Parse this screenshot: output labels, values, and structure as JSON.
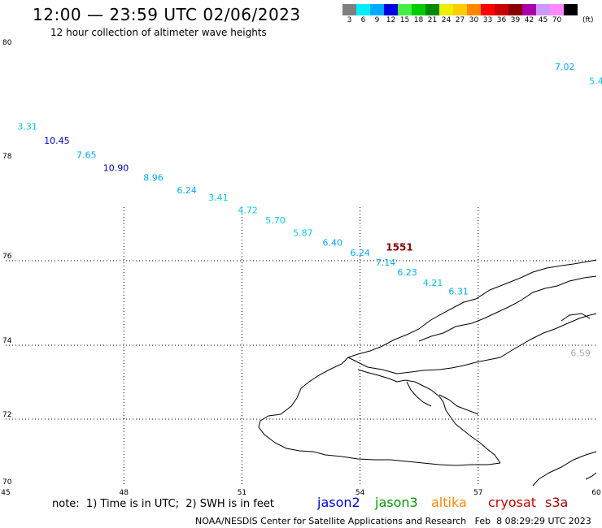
{
  "header": {
    "title": "12:00 — 23:59 UTC 02/06/2023",
    "subtitle": "12 hour collection of altimeter wave heights"
  },
  "color_scale": {
    "unit": "(ft)",
    "bins": [
      {
        "label": "3",
        "color": "#7f7f7f"
      },
      {
        "label": "6",
        "color": "#00eeff"
      },
      {
        "label": "9",
        "color": "#00aaff"
      },
      {
        "label": "12",
        "color": "#0000e0"
      },
      {
        "label": "15",
        "color": "#44ee44"
      },
      {
        "label": "18",
        "color": "#00cc00"
      },
      {
        "label": "21",
        "color": "#008800"
      },
      {
        "label": "24",
        "color": "#eeee00"
      },
      {
        "label": "27",
        "color": "#ffcc00"
      },
      {
        "label": "30",
        "color": "#ff8800"
      },
      {
        "label": "33",
        "color": "#ff0000"
      },
      {
        "label": "36",
        "color": "#cc0000"
      },
      {
        "label": "39",
        "color": "#880000"
      },
      {
        "label": "42",
        "color": "#aa00aa"
      },
      {
        "label": "45",
        "color": "#cc99ff"
      },
      {
        "label": "70",
        "color": "#ff88ff"
      },
      {
        "label": "",
        "color": "#000000"
      }
    ]
  },
  "map": {
    "lon_range": [
      45,
      60
    ],
    "lat_range": [
      70,
      80
    ],
    "lon_ticks": [
      "45",
      "48",
      "51",
      "54",
      "57",
      "60"
    ],
    "lat_ticks": [
      "80",
      "78",
      "76",
      "74",
      "72",
      "70"
    ],
    "observations": [
      {
        "value": "7.02",
        "lon": 59.2,
        "lat": 79.6,
        "color": "#00aaff"
      },
      {
        "value": "5.4",
        "lon": 60.0,
        "lat": 79.35,
        "color": "#00ccee"
      },
      {
        "value": "3.31",
        "lon": 45.55,
        "lat": 78.55,
        "color": "#00ccee"
      },
      {
        "value": "10.45",
        "lon": 46.3,
        "lat": 78.3,
        "color": "#0000cc"
      },
      {
        "value": "7.65",
        "lon": 47.05,
        "lat": 78.05,
        "color": "#00aaff"
      },
      {
        "value": "10.90",
        "lon": 47.8,
        "lat": 77.8,
        "color": "#0000cc"
      },
      {
        "value": "8.96",
        "lon": 48.75,
        "lat": 77.6,
        "color": "#00aaff"
      },
      {
        "value": "6.24",
        "lon": 49.6,
        "lat": 77.35,
        "color": "#00aaff"
      },
      {
        "value": "3.41",
        "lon": 50.4,
        "lat": 77.2,
        "color": "#00ccee"
      },
      {
        "value": "4.72",
        "lon": 51.15,
        "lat": 76.95,
        "color": "#00ccee"
      },
      {
        "value": "5.70",
        "lon": 51.85,
        "lat": 76.75,
        "color": "#00ccee"
      },
      {
        "value": "5.87",
        "lon": 52.55,
        "lat": 76.5,
        "color": "#00ccee"
      },
      {
        "value": "6.40",
        "lon": 53.3,
        "lat": 76.3,
        "color": "#00aaff"
      },
      {
        "value": "6.24",
        "lon": 54.0,
        "lat": 76.1,
        "color": "#00aaff"
      },
      {
        "value": "7.14",
        "lon": 54.65,
        "lat": 75.88,
        "color": "#00aaff"
      },
      {
        "value": "6.23",
        "lon": 55.2,
        "lat": 75.65,
        "color": "#00aaff"
      },
      {
        "value": "4.21",
        "lon": 55.85,
        "lat": 75.4,
        "color": "#00ccee"
      },
      {
        "value": "6.31",
        "lon": 56.5,
        "lat": 75.2,
        "color": "#00aaff"
      },
      {
        "value": "6.59",
        "lon": 59.6,
        "lat": 73.7,
        "color": "#aaaaaa"
      }
    ],
    "track_label": {
      "value": "1551",
      "lon": 55.0,
      "lat": 76.2,
      "color": "#8b0000"
    }
  },
  "note": "note:  1) Time is in UTC;  2) SWH is in feet",
  "satellites": [
    {
      "name": "jason2",
      "color": "#0000dd"
    },
    {
      "name": "jason3",
      "color": "#009900"
    },
    {
      "name": "altika",
      "color": "#ff8800"
    },
    {
      "name": "cryosat",
      "color": "#cc0000"
    },
    {
      "name": "s3a",
      "color": "#aa0000"
    }
  ],
  "footer": "NOAA/NESDIS Center for Satellite Applications and Research   Feb  8 08:29:29 UTC 2023"
}
